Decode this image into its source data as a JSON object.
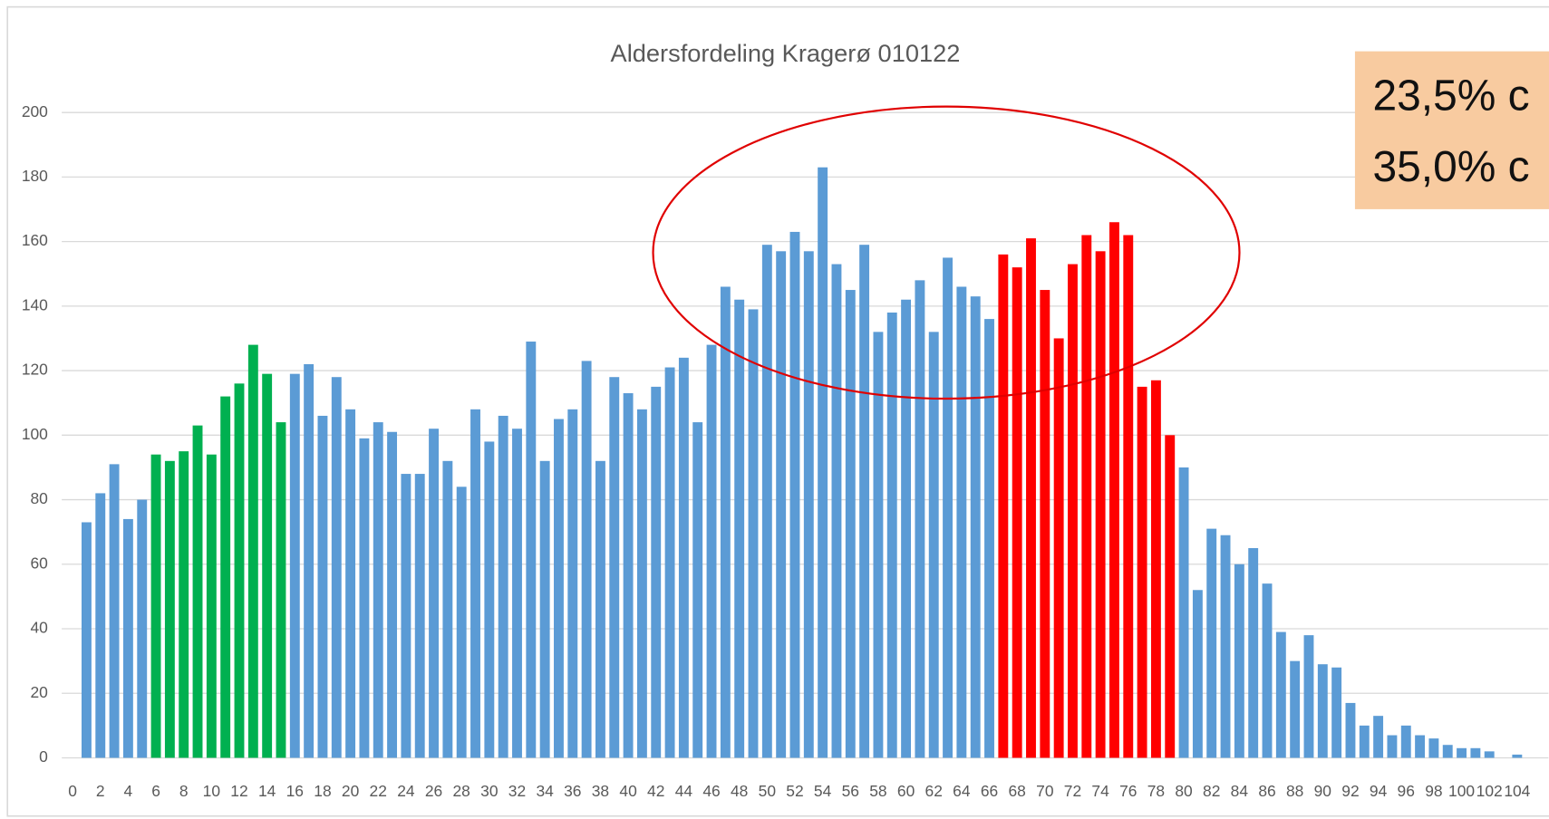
{
  "chart_data": {
    "type": "bar",
    "title": "Aldersfordeling Kragerø 010122",
    "annotations": [
      "23,5% c",
      "35,0% c"
    ],
    "categories": [
      "0",
      null,
      "2",
      null,
      "4",
      null,
      "6",
      null,
      "8",
      null,
      "10",
      null,
      "12",
      null,
      "14",
      null,
      "16",
      null,
      "18",
      null,
      "20",
      null,
      "22",
      null,
      "24",
      null,
      "26",
      null,
      "28",
      null,
      "30",
      null,
      "32",
      null,
      "34",
      null,
      "36",
      null,
      "38",
      null,
      "40",
      null,
      "42",
      null,
      "44",
      null,
      "46",
      null,
      "48",
      null,
      "50",
      null,
      "52",
      null,
      "54",
      null,
      "56",
      null,
      "58",
      null,
      "60",
      null,
      "62",
      null,
      "64",
      null,
      "66",
      null,
      "68",
      null,
      "70",
      null,
      "72",
      null,
      "74",
      null,
      "76",
      null,
      "78",
      null,
      "80",
      null,
      "82",
      null,
      "84",
      null,
      "86",
      null,
      "88",
      null,
      "90",
      null,
      "92",
      null,
      "94",
      null,
      "96",
      null,
      "98",
      null,
      "100",
      null,
      "102",
      null,
      "104"
    ],
    "values": [
      0,
      73,
      82,
      91,
      74,
      80,
      94,
      92,
      95,
      103,
      94,
      112,
      116,
      128,
      119,
      104,
      119,
      122,
      106,
      118,
      108,
      99,
      104,
      101,
      88,
      88,
      102,
      92,
      84,
      108,
      98,
      106,
      102,
      129,
      92,
      105,
      108,
      123,
      92,
      118,
      113,
      108,
      115,
      121,
      124,
      104,
      128,
      146,
      142,
      139,
      159,
      157,
      163,
      157,
      183,
      153,
      145,
      159,
      132,
      138,
      142,
      148,
      132,
      155,
      146,
      143,
      136,
      156,
      152,
      161,
      145,
      130,
      153,
      162,
      157,
      166,
      162,
      115,
      117,
      100,
      90,
      52,
      71,
      69,
      60,
      65,
      54,
      39,
      30,
      38,
      29,
      28,
      17,
      10,
      13,
      7,
      10,
      7,
      6,
      4,
      3,
      3,
      2,
      0,
      1
    ],
    "colors": [
      "#5b9bd5",
      "#5b9bd5",
      "#5b9bd5",
      "#5b9bd5",
      "#5b9bd5",
      "#5b9bd5",
      "#00b050",
      "#00b050",
      "#00b050",
      "#00b050",
      "#00b050",
      "#00b050",
      "#00b050",
      "#00b050",
      "#00b050",
      "#00b050",
      "#5b9bd5",
      "#5b9bd5",
      "#5b9bd5",
      "#5b9bd5",
      "#5b9bd5",
      "#5b9bd5",
      "#5b9bd5",
      "#5b9bd5",
      "#5b9bd5",
      "#5b9bd5",
      "#5b9bd5",
      "#5b9bd5",
      "#5b9bd5",
      "#5b9bd5",
      "#5b9bd5",
      "#5b9bd5",
      "#5b9bd5",
      "#5b9bd5",
      "#5b9bd5",
      "#5b9bd5",
      "#5b9bd5",
      "#5b9bd5",
      "#5b9bd5",
      "#5b9bd5",
      "#5b9bd5",
      "#5b9bd5",
      "#5b9bd5",
      "#5b9bd5",
      "#5b9bd5",
      "#5b9bd5",
      "#5b9bd5",
      "#5b9bd5",
      "#5b9bd5",
      "#5b9bd5",
      "#5b9bd5",
      "#5b9bd5",
      "#5b9bd5",
      "#5b9bd5",
      "#5b9bd5",
      "#5b9bd5",
      "#5b9bd5",
      "#5b9bd5",
      "#5b9bd5",
      "#5b9bd5",
      "#5b9bd5",
      "#5b9bd5",
      "#5b9bd5",
      "#5b9bd5",
      "#5b9bd5",
      "#5b9bd5",
      "#5b9bd5",
      "#ff0000",
      "#ff0000",
      "#ff0000",
      "#ff0000",
      "#ff0000",
      "#ff0000",
      "#ff0000",
      "#ff0000",
      "#ff0000",
      "#ff0000",
      "#ff0000",
      "#ff0000",
      "#ff0000",
      "#5b9bd5",
      "#5b9bd5",
      "#5b9bd5",
      "#5b9bd5",
      "#5b9bd5",
      "#5b9bd5",
      "#5b9bd5",
      "#5b9bd5",
      "#5b9bd5",
      "#5b9bd5",
      "#5b9bd5",
      "#5b9bd5",
      "#5b9bd5",
      "#5b9bd5",
      "#5b9bd5",
      "#5b9bd5",
      "#5b9bd5",
      "#5b9bd5",
      "#5b9bd5",
      "#5b9bd5",
      "#5b9bd5",
      "#5b9bd5",
      "#5b9bd5",
      "#5b9bd5",
      "#5b9bd5"
    ],
    "ylim": [
      0,
      200
    ],
    "yticks": [
      0,
      20,
      40,
      60,
      80,
      100,
      120,
      140,
      160,
      180,
      200
    ],
    "grid": true
  }
}
